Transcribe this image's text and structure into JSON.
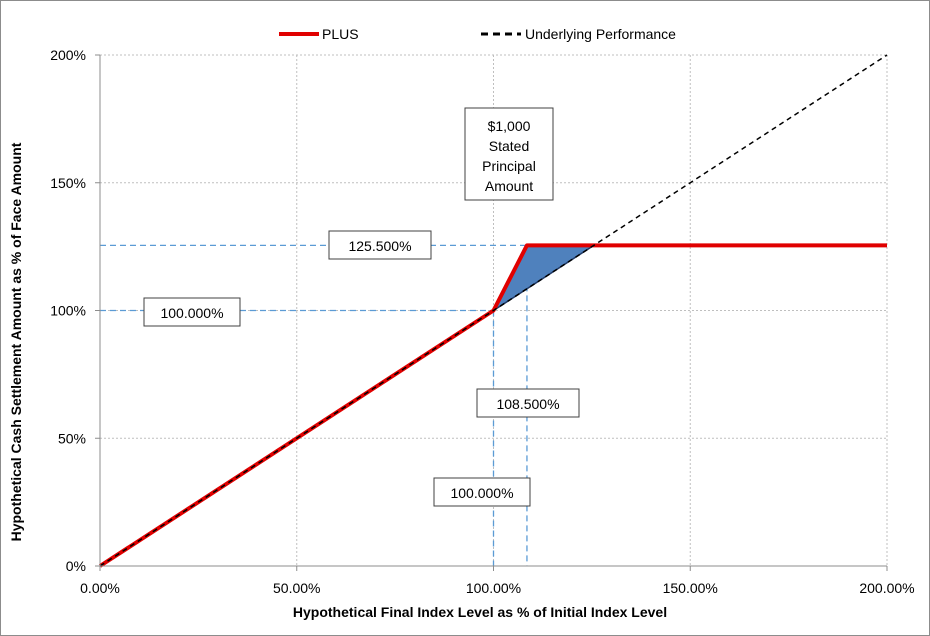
{
  "chart_data": {
    "type": "line",
    "xlabel": "Hypothetical Final Index Level as % of Initial Index Level",
    "ylabel": "Hypothetical Cash Settlement Amount as % of Face Amount",
    "xlim": [
      0,
      200
    ],
    "ylim": [
      0,
      200
    ],
    "xticks": [
      0,
      50,
      100,
      150,
      200
    ],
    "yticks": [
      0,
      50,
      100,
      150,
      200
    ],
    "xtick_labels": [
      "0.00%",
      "50.00%",
      "100.00%",
      "150.00%",
      "200.00%"
    ],
    "ytick_labels": [
      "0%",
      "50%",
      "100%",
      "150%",
      "200%"
    ],
    "grid": true,
    "legend_position": "top-center",
    "series": [
      {
        "name": "PLUS",
        "color": "#e00000",
        "style": "solid",
        "x": [
          0,
          100,
          108.5,
          125.5,
          200
        ],
        "y": [
          0,
          100,
          125.5,
          125.5,
          125.5
        ]
      },
      {
        "name": "Underlying Performance",
        "color": "#000000",
        "style": "dashed",
        "x": [
          0,
          200
        ],
        "y": [
          0,
          200
        ]
      }
    ],
    "shaded_region": {
      "color": "#4f81bd",
      "x": [
        100,
        108.5,
        125.5
      ],
      "y": [
        100,
        125.5,
        125.5
      ]
    },
    "reference_lines": [
      {
        "axis": "y",
        "value": 125.5,
        "x_to": 108.5
      },
      {
        "axis": "y",
        "value": 100,
        "x_to": 100
      },
      {
        "axis": "x",
        "value": 100,
        "y_to": 100
      },
      {
        "axis": "x",
        "value": 108.5,
        "y_to": 125.5
      }
    ],
    "annotations": [
      {
        "text": "$1,000\nStated\nPrincipal\nAmount"
      },
      {
        "text": "125.500%"
      },
      {
        "text": "100.000%"
      },
      {
        "text": "108.500%"
      },
      {
        "text": "100.000%"
      }
    ]
  }
}
